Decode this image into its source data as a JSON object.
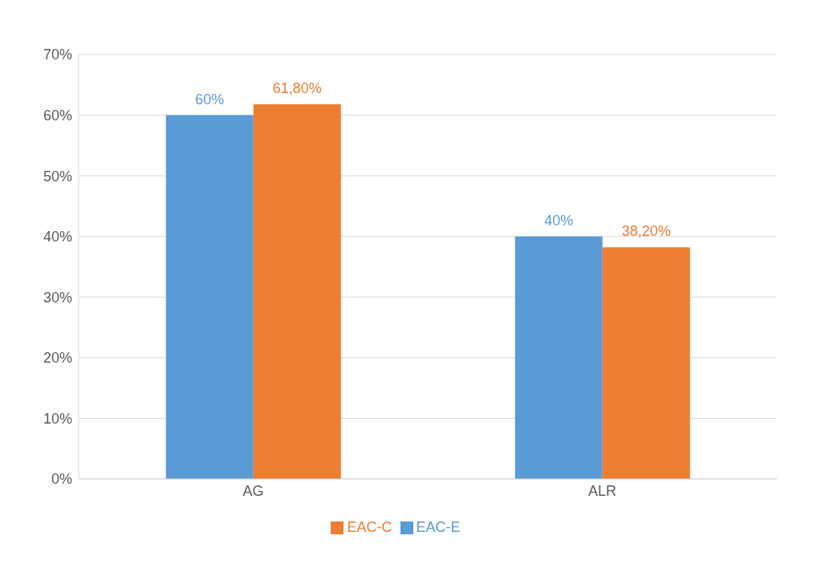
{
  "chart_data": {
    "type": "bar",
    "categories": [
      "AG",
      "ALR"
    ],
    "series": [
      {
        "name": "EAC-E",
        "color": "#5b9bd5",
        "values": [
          60,
          40
        ],
        "value_labels": [
          "60%",
          "40%"
        ]
      },
      {
        "name": "EAC-C",
        "color": "#ed7d31",
        "values": [
          61.8,
          38.2
        ],
        "value_labels": [
          "61,80%",
          "38,20%"
        ]
      }
    ],
    "ylim": [
      0,
      70
    ],
    "yticks": [
      {
        "value": 0,
        "label": "0%"
      },
      {
        "value": 10,
        "label": "10%"
      },
      {
        "value": 20,
        "label": "20%"
      },
      {
        "value": 30,
        "label": "30%"
      },
      {
        "value": 40,
        "label": "40%"
      },
      {
        "value": 50,
        "label": "50%"
      },
      {
        "value": 60,
        "label": "60%"
      },
      {
        "value": 70,
        "label": "70%"
      }
    ],
    "grid": "y",
    "legend": "bottom"
  }
}
